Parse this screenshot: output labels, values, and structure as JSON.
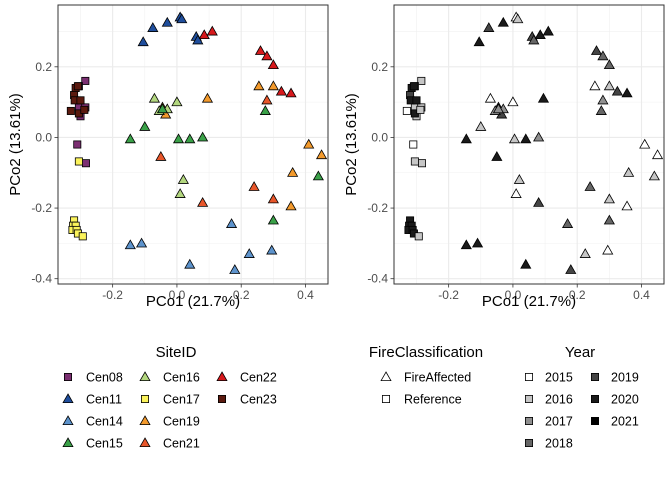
{
  "chart_data": [
    {
      "type": "scatter",
      "xlabel": "PCo1 (21.7%)",
      "ylabel": "PCo2 (13.61%)",
      "xlim": [
        -0.37,
        0.47
      ],
      "ylim": [
        -0.415,
        0.375
      ],
      "xticks": [
        -0.2,
        0.0,
        0.2,
        0.4
      ],
      "xtick_labels": [
        "-0.2",
        "0.0",
        "0.2",
        "0.4"
      ],
      "yticks": [
        -0.4,
        -0.2,
        0.0,
        0.2
      ],
      "ytick_labels": [
        "-0.4",
        "-0.2",
        "0.0",
        "0.2"
      ],
      "grid": true,
      "color_by": "site",
      "points": [
        {
          "x": -0.285,
          "y": 0.16,
          "site": "Cen08",
          "shape": "square",
          "year": "2016"
        },
        {
          "x": -0.305,
          "y": 0.145,
          "site": "Cen08",
          "shape": "square",
          "year": "2016"
        },
        {
          "x": -0.305,
          "y": 0.085,
          "site": "Cen08",
          "shape": "square",
          "year": "2016"
        },
        {
          "x": -0.285,
          "y": 0.085,
          "site": "Cen08",
          "shape": "square",
          "year": "2016"
        },
        {
          "x": -0.3,
          "y": 0.06,
          "site": "Cen08",
          "shape": "square",
          "year": "2016"
        },
        {
          "x": -0.31,
          "y": -0.02,
          "site": "Cen08",
          "shape": "square",
          "year": "2015"
        },
        {
          "x": -0.283,
          "y": -0.073,
          "site": "Cen08",
          "shape": "square",
          "year": "2016"
        },
        {
          "x": -0.32,
          "y": 0.12,
          "site": "Cen23",
          "shape": "square",
          "year": "2019"
        },
        {
          "x": -0.315,
          "y": 0.14,
          "site": "Cen23",
          "shape": "square",
          "year": "2020"
        },
        {
          "x": -0.308,
          "y": 0.145,
          "site": "Cen23",
          "shape": "square",
          "year": "2020"
        },
        {
          "x": -0.318,
          "y": 0.105,
          "site": "Cen23",
          "shape": "square",
          "year": "2020"
        },
        {
          "x": -0.3,
          "y": 0.105,
          "site": "Cen23",
          "shape": "square",
          "year": "2020"
        },
        {
          "x": -0.33,
          "y": 0.075,
          "site": "Cen23",
          "shape": "square",
          "year": "2015"
        },
        {
          "x": -0.305,
          "y": 0.068,
          "site": "Cen23",
          "shape": "square",
          "year": "2020"
        },
        {
          "x": -0.288,
          "y": 0.078,
          "site": "Cen23",
          "shape": "square",
          "year": "2016"
        },
        {
          "x": -0.305,
          "y": -0.068,
          "site": "Cen17",
          "shape": "square",
          "year": "2016"
        },
        {
          "x": -0.32,
          "y": -0.235,
          "site": "Cen17",
          "shape": "square",
          "year": "2020"
        },
        {
          "x": -0.323,
          "y": -0.25,
          "site": "Cen17",
          "shape": "square",
          "year": "2020"
        },
        {
          "x": -0.315,
          "y": -0.25,
          "site": "Cen17",
          "shape": "square",
          "year": "2020"
        },
        {
          "x": -0.325,
          "y": -0.262,
          "site": "Cen17",
          "shape": "square",
          "year": "2020"
        },
        {
          "x": -0.312,
          "y": -0.262,
          "site": "Cen17",
          "shape": "square",
          "year": "2020"
        },
        {
          "x": -0.308,
          "y": -0.272,
          "site": "Cen17",
          "shape": "square",
          "year": "2020"
        },
        {
          "x": -0.293,
          "y": -0.28,
          "site": "Cen17",
          "shape": "square",
          "year": "2016"
        },
        {
          "x": -0.105,
          "y": 0.27,
          "site": "Cen11",
          "shape": "triangle",
          "year": "2020"
        },
        {
          "x": -0.075,
          "y": 0.31,
          "site": "Cen11",
          "shape": "triangle",
          "year": "2019"
        },
        {
          "x": -0.03,
          "y": 0.325,
          "site": "Cen11",
          "shape": "triangle",
          "year": "2020"
        },
        {
          "x": 0.01,
          "y": 0.34,
          "site": "Cen11",
          "shape": "triangle",
          "year": "2015"
        },
        {
          "x": 0.015,
          "y": 0.335,
          "site": "Cen11",
          "shape": "triangle",
          "year": "2016"
        },
        {
          "x": 0.06,
          "y": 0.285,
          "site": "Cen11",
          "shape": "triangle",
          "year": "2019"
        },
        {
          "x": 0.065,
          "y": 0.275,
          "site": "Cen11",
          "shape": "triangle",
          "year": "2018"
        },
        {
          "x": 0.085,
          "y": 0.29,
          "site": "Cen22",
          "shape": "triangle",
          "year": "2020"
        },
        {
          "x": 0.11,
          "y": 0.3,
          "site": "Cen22",
          "shape": "triangle",
          "year": "2020"
        },
        {
          "x": 0.26,
          "y": 0.245,
          "site": "Cen22",
          "shape": "triangle",
          "year": "2019"
        },
        {
          "x": 0.28,
          "y": 0.23,
          "site": "Cen22",
          "shape": "triangle",
          "year": "2018"
        },
        {
          "x": 0.3,
          "y": 0.205,
          "site": "Cen22",
          "shape": "triangle",
          "year": "2018"
        },
        {
          "x": 0.325,
          "y": 0.13,
          "site": "Cen22",
          "shape": "triangle",
          "year": "2019"
        },
        {
          "x": 0.355,
          "y": 0.125,
          "site": "Cen22",
          "shape": "triangle",
          "year": "2020"
        },
        {
          "x": 0.255,
          "y": 0.145,
          "site": "Cen19",
          "shape": "triangle",
          "year": "2015"
        },
        {
          "x": 0.3,
          "y": 0.145,
          "site": "Cen19",
          "shape": "triangle",
          "year": "2016"
        },
        {
          "x": 0.095,
          "y": 0.11,
          "site": "Cen19",
          "shape": "triangle",
          "year": "2020"
        },
        {
          "x": 0.41,
          "y": -0.02,
          "site": "Cen19",
          "shape": "triangle",
          "year": "2015"
        },
        {
          "x": 0.45,
          "y": -0.05,
          "site": "Cen19",
          "shape": "triangle",
          "year": "2015"
        },
        {
          "x": 0.36,
          "y": -0.1,
          "site": "Cen19",
          "shape": "triangle",
          "year": "2016"
        },
        {
          "x": 0.355,
          "y": -0.195,
          "site": "Cen19",
          "shape": "triangle",
          "year": "2015"
        },
        {
          "x": -0.045,
          "y": 0.085,
          "site": "Cen19",
          "shape": "triangle",
          "year": "2019"
        },
        {
          "x": -0.035,
          "y": 0.065,
          "site": "Cen19",
          "shape": "triangle",
          "year": "2019"
        },
        {
          "x": -0.05,
          "y": -0.055,
          "site": "Cen21",
          "shape": "triangle",
          "year": "2020"
        },
        {
          "x": 0.24,
          "y": -0.14,
          "site": "Cen21",
          "shape": "triangle",
          "year": "2018"
        },
        {
          "x": 0.3,
          "y": -0.175,
          "site": "Cen21",
          "shape": "triangle",
          "year": "2016"
        },
        {
          "x": 0.08,
          "y": -0.185,
          "site": "Cen21",
          "shape": "triangle",
          "year": "2019"
        },
        {
          "x": 0.28,
          "y": 0.105,
          "site": "Cen21",
          "shape": "triangle",
          "year": "2017"
        },
        {
          "x": -0.07,
          "y": 0.11,
          "site": "Cen16",
          "shape": "triangle",
          "year": "2015"
        },
        {
          "x": -0.055,
          "y": 0.075,
          "site": "Cen16",
          "shape": "triangle",
          "year": "2017"
        },
        {
          "x": -0.03,
          "y": 0.08,
          "site": "Cen16",
          "shape": "triangle",
          "year": "2017"
        },
        {
          "x": 0.0,
          "y": 0.1,
          "site": "Cen16",
          "shape": "triangle",
          "year": "2015"
        },
        {
          "x": 0.02,
          "y": -0.12,
          "site": "Cen16",
          "shape": "triangle",
          "year": "2016"
        },
        {
          "x": 0.01,
          "y": -0.16,
          "site": "Cen16",
          "shape": "triangle",
          "year": "2015"
        },
        {
          "x": -0.045,
          "y": 0.08,
          "site": "Cen15",
          "shape": "triangle",
          "year": "2017"
        },
        {
          "x": -0.1,
          "y": 0.03,
          "site": "Cen15",
          "shape": "triangle",
          "year": "2016"
        },
        {
          "x": -0.145,
          "y": -0.005,
          "site": "Cen15",
          "shape": "triangle",
          "year": "2020"
        },
        {
          "x": 0.005,
          "y": -0.005,
          "site": "Cen15",
          "shape": "triangle",
          "year": "2016"
        },
        {
          "x": 0.04,
          "y": -0.005,
          "site": "Cen15",
          "shape": "triangle",
          "year": "2020"
        },
        {
          "x": 0.08,
          "y": 0.0,
          "site": "Cen15",
          "shape": "triangle",
          "year": "2017"
        },
        {
          "x": 0.275,
          "y": 0.075,
          "site": "Cen15",
          "shape": "triangle",
          "year": "2018"
        },
        {
          "x": 0.44,
          "y": -0.11,
          "site": "Cen15",
          "shape": "triangle",
          "year": "2016"
        },
        {
          "x": 0.3,
          "y": -0.235,
          "site": "Cen15",
          "shape": "triangle",
          "year": "2018"
        },
        {
          "x": 0.17,
          "y": -0.245,
          "site": "Cen14",
          "shape": "triangle",
          "year": "2018"
        },
        {
          "x": -0.145,
          "y": -0.305,
          "site": "Cen14",
          "shape": "triangle",
          "year": "2020"
        },
        {
          "x": -0.11,
          "y": -0.3,
          "site": "Cen14",
          "shape": "triangle",
          "year": "2020"
        },
        {
          "x": 0.04,
          "y": -0.36,
          "site": "Cen14",
          "shape": "triangle",
          "year": "2020"
        },
        {
          "x": 0.18,
          "y": -0.375,
          "site": "Cen14",
          "shape": "triangle",
          "year": "2019"
        },
        {
          "x": 0.225,
          "y": -0.33,
          "site": "Cen14",
          "shape": "triangle",
          "year": "2016"
        },
        {
          "x": 0.295,
          "y": -0.32,
          "site": "Cen14",
          "shape": "triangle",
          "year": "2015"
        }
      ]
    },
    {
      "type": "scatter",
      "xlabel": "PCo1 (21.7%)",
      "ylabel": "PCo2 (13.61%)",
      "xlim": [
        -0.37,
        0.47
      ],
      "ylim": [
        -0.415,
        0.375
      ],
      "xticks": [
        -0.2,
        0.0,
        0.2,
        0.4
      ],
      "xtick_labels": [
        "-0.2",
        "0.0",
        "0.2",
        "0.4"
      ],
      "yticks": [
        -0.4,
        -0.2,
        0.0,
        0.2
      ],
      "ytick_labels": [
        "-0.4",
        "-0.2",
        "0.0",
        "0.2"
      ],
      "grid": true,
      "color_by": "year",
      "same_points_as_panel": 0
    }
  ],
  "legends": {
    "site": {
      "title": "SiteID",
      "items": [
        {
          "label": "Cen08",
          "color": "#7b2f71",
          "shape": "square"
        },
        {
          "label": "Cen11",
          "color": "#1f4e9c",
          "shape": "triangle"
        },
        {
          "label": "Cen14",
          "color": "#5d93cc",
          "shape": "triangle"
        },
        {
          "label": "Cen15",
          "color": "#3aa148",
          "shape": "triangle"
        },
        {
          "label": "Cen16",
          "color": "#b3d77f",
          "shape": "triangle"
        },
        {
          "label": "Cen17",
          "color": "#fbf35b",
          "shape": "square"
        },
        {
          "label": "Cen19",
          "color": "#f39a2c",
          "shape": "triangle"
        },
        {
          "label": "Cen21",
          "color": "#e8562a",
          "shape": "triangle"
        },
        {
          "label": "Cen22",
          "color": "#d7191c",
          "shape": "triangle"
        },
        {
          "label": "Cen23",
          "color": "#5b1a0f",
          "shape": "square"
        }
      ]
    },
    "fire": {
      "title": "FireClassification",
      "items": [
        {
          "label": "FireAffected",
          "shape": "triangle"
        },
        {
          "label": "Reference",
          "shape": "square"
        }
      ]
    },
    "year": {
      "title": "Year",
      "items": [
        {
          "label": "2015",
          "color": "#ffffff"
        },
        {
          "label": "2016",
          "color": "#c6c6c6"
        },
        {
          "label": "2017",
          "color": "#8f8f8f"
        },
        {
          "label": "2018",
          "color": "#666666"
        },
        {
          "label": "2019",
          "color": "#444444"
        },
        {
          "label": "2020",
          "color": "#1a1a1a"
        },
        {
          "label": "2021",
          "color": "#000000"
        }
      ]
    }
  }
}
